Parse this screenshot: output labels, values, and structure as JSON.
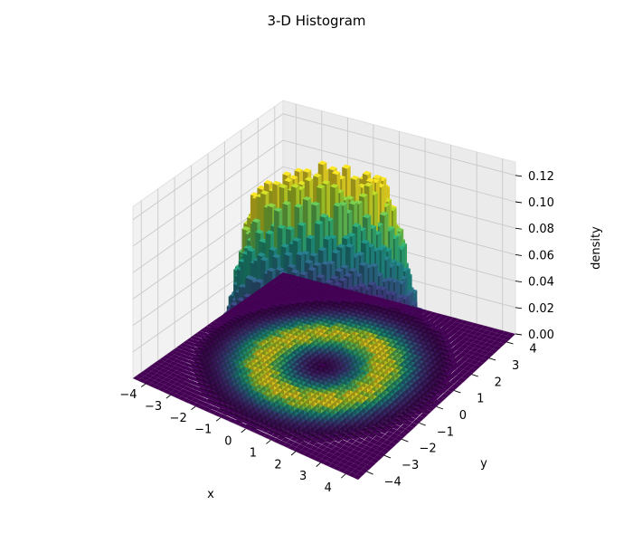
{
  "chart_data": {
    "type": "histogram-3d",
    "title": "3-D Histogram",
    "xlabel": "x",
    "ylabel": "y",
    "zlabel": "density",
    "xlim": [
      -4.5,
      4.5
    ],
    "ylim": [
      -4.5,
      4.5
    ],
    "zlim": [
      0,
      0.13
    ],
    "x_ticks": [
      "−4",
      "−3",
      "−2",
      "−1",
      "0",
      "1",
      "2",
      "3",
      "4"
    ],
    "y_ticks": [
      "−4",
      "−3",
      "−2",
      "−1",
      "0",
      "1",
      "2",
      "3",
      "4"
    ],
    "z_ticks": [
      "0.00",
      "0.02",
      "0.04",
      "0.06",
      "0.08",
      "0.10",
      "0.12"
    ],
    "x_tick_values": [
      -4,
      -3,
      -2,
      -1,
      0,
      1,
      2,
      3,
      4
    ],
    "y_tick_values": [
      -4,
      -3,
      -2,
      -1,
      0,
      1,
      2,
      3,
      4
    ],
    "z_tick_values": [
      0,
      0.02,
      0.04,
      0.06,
      0.08,
      0.1,
      0.12
    ],
    "grid": true,
    "colormap": "viridis",
    "colormap_stops": [
      "#440154",
      "#482878",
      "#3e4989",
      "#31688e",
      "#26828e",
      "#1f9e89",
      "#35b779",
      "#6ece58",
      "#b5de2b",
      "#fde725"
    ],
    "distribution": {
      "shape": "ring",
      "center": [
        0,
        0
      ],
      "ring_radius": 2,
      "ring_width_sd": 0.7,
      "peak_density": 0.12,
      "bin_width": 0.2
    }
  }
}
